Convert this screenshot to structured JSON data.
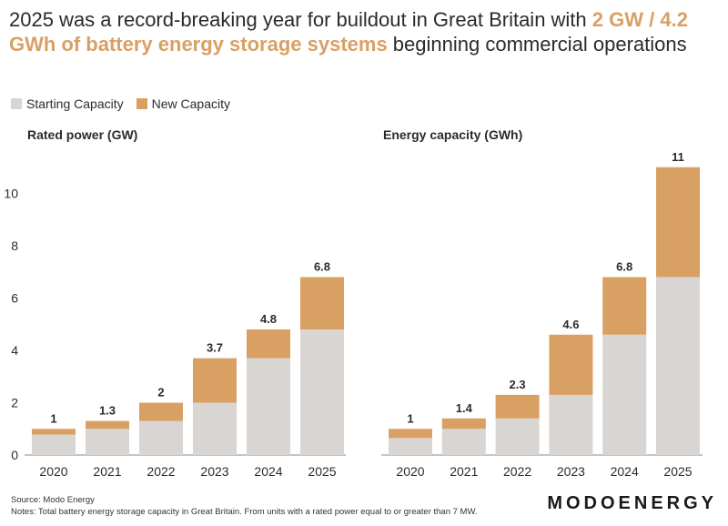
{
  "title": {
    "part1": "2025 was a record-breaking year for buildout in Great Britain with ",
    "highlight": "2 GW / 4.2 GWh of battery energy storage systems",
    "part2": " beginning commercial operations"
  },
  "legend": [
    {
      "label": "Starting Capacity",
      "color": "#d9d5d3"
    },
    {
      "label": "New Capacity",
      "color": "#d9a064"
    }
  ],
  "colors": {
    "starting": "#d9d5d3",
    "new": "#d9a064",
    "axis": "#888888",
    "text": "#2b2b2b"
  },
  "chart_data": [
    {
      "type": "bar",
      "stacked": true,
      "title": "Rated power (GW)",
      "categories": [
        "2020",
        "2021",
        "2022",
        "2023",
        "2024",
        "2025"
      ],
      "series": [
        {
          "name": "Starting Capacity",
          "values": [
            0.78,
            1.0,
            1.3,
            2.0,
            3.7,
            4.8
          ]
        },
        {
          "name": "New Capacity",
          "values": [
            0.22,
            0.3,
            0.7,
            1.7,
            1.1,
            2.0
          ]
        }
      ],
      "totals": [
        "1",
        "1.3",
        "2",
        "3.7",
        "4.8",
        "6.8"
      ],
      "yticks": [
        "0",
        "2",
        "4",
        "6",
        "8",
        "10"
      ],
      "ylim": [
        0,
        11.5
      ]
    },
    {
      "type": "bar",
      "stacked": true,
      "title": "Energy capacity (GWh)",
      "categories": [
        "2020",
        "2021",
        "2022",
        "2023",
        "2024",
        "2025"
      ],
      "series": [
        {
          "name": "Starting Capacity",
          "values": [
            0.65,
            1.0,
            1.4,
            2.3,
            4.6,
            6.8
          ]
        },
        {
          "name": "New Capacity",
          "values": [
            0.35,
            0.4,
            0.9,
            2.3,
            2.2,
            4.2
          ]
        }
      ],
      "totals": [
        "1",
        "1.4",
        "2.3",
        "4.6",
        "6.8",
        "11"
      ],
      "ylim": [
        0,
        11.5
      ]
    }
  ],
  "footer": {
    "source": "Source: Modo Energy",
    "notes": "Notes: Total battery energy storage capacity in Great Britain. From units with a rated power equal to or greater than 7 MW.",
    "brand": "MODOENERGY"
  }
}
